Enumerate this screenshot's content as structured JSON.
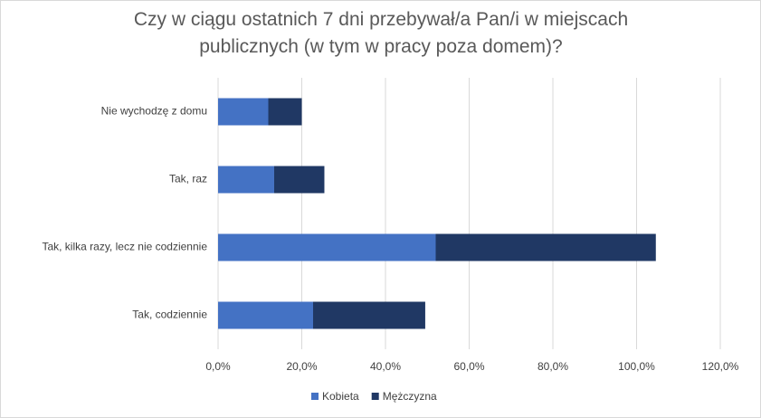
{
  "chart_data": {
    "type": "stacked-bar-horizontal",
    "title": "Czy w ciągu ostatnich 7 dni przebywał/a Pan/i w miejscach publicznych (w tym w pracy poza domem)?",
    "categories": [
      "Nie wychodzę z domu",
      "Tak, raz",
      "Tak, kilka razy, lecz nie codziennie",
      "Tak, codziennie"
    ],
    "series": [
      {
        "name": "Kobieta",
        "color": "#4472c4",
        "values": [
          12,
          13.4,
          52,
          22.7
        ]
      },
      {
        "name": "Mężczyzna",
        "color": "#203864",
        "values": [
          8,
          12,
          52.6,
          26.8
        ]
      }
    ],
    "xlim": [
      0,
      120
    ],
    "xticks": [
      {
        "value": 0,
        "label": "0,0%"
      },
      {
        "value": 20,
        "label": "20,0%"
      },
      {
        "value": 40,
        "label": "40,0%"
      },
      {
        "value": 60,
        "label": "60,0%"
      },
      {
        "value": 80,
        "label": "80,0%"
      },
      {
        "value": 100,
        "label": "100,0%"
      },
      {
        "value": 120,
        "label": "120,0%"
      }
    ],
    "grid": true,
    "legend": "bottom"
  }
}
